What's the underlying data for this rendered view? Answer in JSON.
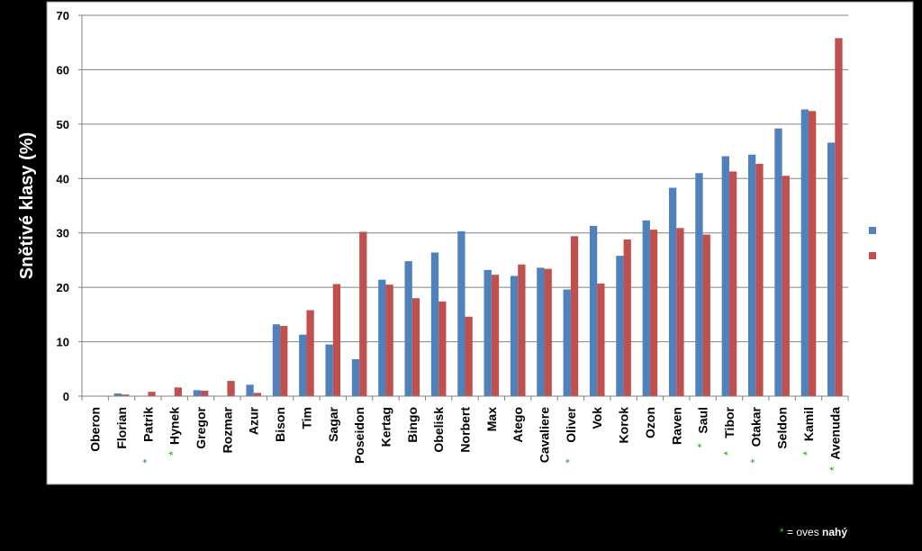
{
  "chart_data": {
    "type": "bar",
    "ylabel": "Snětivé klasy (%)",
    "ylim": [
      0,
      70
    ],
    "yticks": [
      0,
      10,
      20,
      30,
      40,
      50,
      60,
      70
    ],
    "grid": true,
    "legend_position": "right",
    "categories": [
      "Oberon",
      "Florian",
      "Patrik",
      "Hynek",
      "Gregor",
      "Rozmar",
      "Azur",
      "Bison",
      "Tim",
      "Sagar",
      "Poseidon",
      "Kertag",
      "Bingo",
      "Obelisk",
      "Norbert",
      "Max",
      "Atego",
      "Cavaliere",
      "Oliver",
      "Vok",
      "Korok",
      "Ozon",
      "Raven",
      "Saul",
      "Tibor",
      "Otakar",
      "Seldon",
      "Kamil",
      "Avenuda"
    ],
    "naked_oat_marked": [
      "Patrik",
      "Hynek",
      "Oliver",
      "Saul",
      "Tibor",
      "Otakar",
      "Kamil",
      "Avenuda"
    ],
    "series": [
      {
        "color": "#4f81bd",
        "values": [
          0,
          0.5,
          0,
          0,
          1.1,
          0,
          2.1,
          13.2,
          11.3,
          9.5,
          6.8,
          21.4,
          24.8,
          26.4,
          30.3,
          23.2,
          22.1,
          23.6,
          19.6,
          31.3,
          25.8,
          32.3,
          38.3,
          41.0,
          44.1,
          44.4,
          49.2,
          52.7,
          46.6
        ]
      },
      {
        "color": "#c0504d",
        "values": [
          0,
          0.3,
          0.8,
          1.6,
          1.0,
          2.8,
          0.6,
          12.9,
          15.8,
          20.6,
          30.2,
          20.5,
          18.0,
          17.4,
          14.6,
          22.3,
          24.2,
          23.4,
          29.4,
          20.7,
          28.8,
          30.6,
          30.9,
          29.7,
          41.3,
          42.7,
          40.5,
          52.4,
          65.8
        ]
      }
    ]
  },
  "footnote": {
    "star": "*",
    "text": " = oves ",
    "bold": "nahý"
  }
}
